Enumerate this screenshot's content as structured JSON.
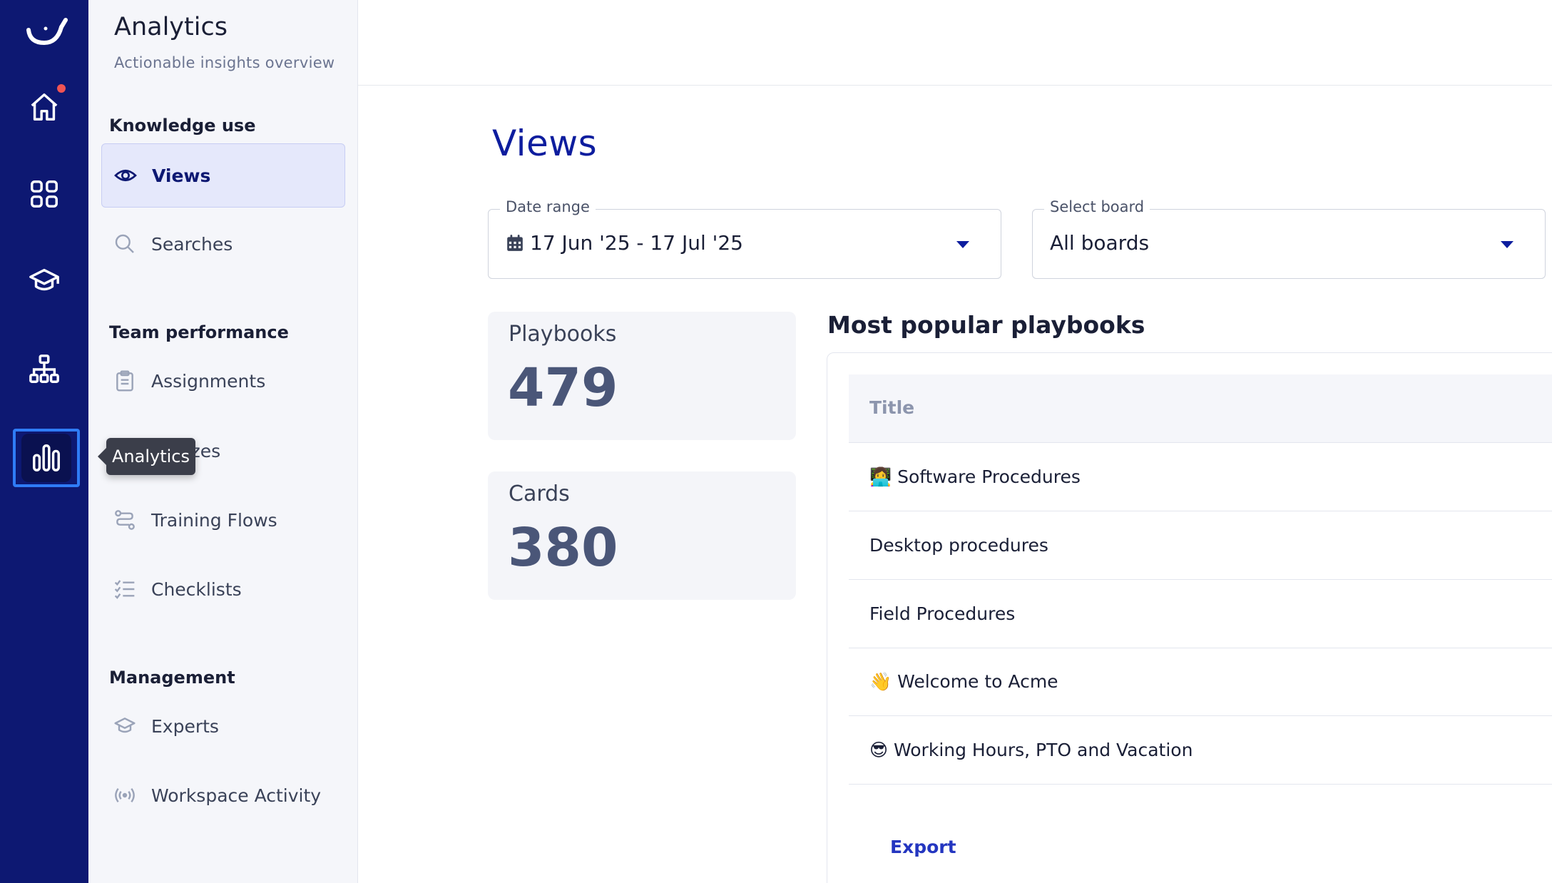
{
  "rail": {
    "icons": [
      "logo-icon",
      "home-icon",
      "grid-icon",
      "graduation-cap-icon",
      "org-chart-icon",
      "bar-chart-icon"
    ],
    "colors": {
      "bg": "#0d1872",
      "active_border": "#2f7cf6",
      "notification": "#f05454"
    }
  },
  "tooltip": "Analytics",
  "subnav": {
    "title": "Analytics",
    "subtitle": "Actionable insights overview",
    "sections": [
      {
        "heading": "Knowledge use",
        "items": [
          "Views",
          "Searches"
        ]
      },
      {
        "heading": "Team performance",
        "items": [
          "Assignments",
          "Quizzes",
          "Training Flows",
          "Checklists"
        ]
      },
      {
        "heading": "Management",
        "items": [
          "Experts",
          "Workspace Activity"
        ]
      }
    ],
    "active_item": "Views"
  },
  "main": {
    "title": "Views",
    "date_range": {
      "label": "Date range",
      "value": "17 Jun '25 - 17 Jul '25"
    },
    "board": {
      "label": "Select board",
      "value": "All boards"
    },
    "stats": [
      {
        "label": "Playbooks",
        "value": "479"
      },
      {
        "label": "Cards",
        "value": "380"
      }
    ],
    "popular": {
      "title": "Most popular playbooks",
      "column": "Title",
      "rows": [
        "👩‍💻 Software Procedures",
        "Desktop procedures",
        "Field Procedures",
        "👋 Welcome to Acme",
        "😎 Working Hours, PTO and Vacation"
      ],
      "export_label": "Export"
    }
  }
}
